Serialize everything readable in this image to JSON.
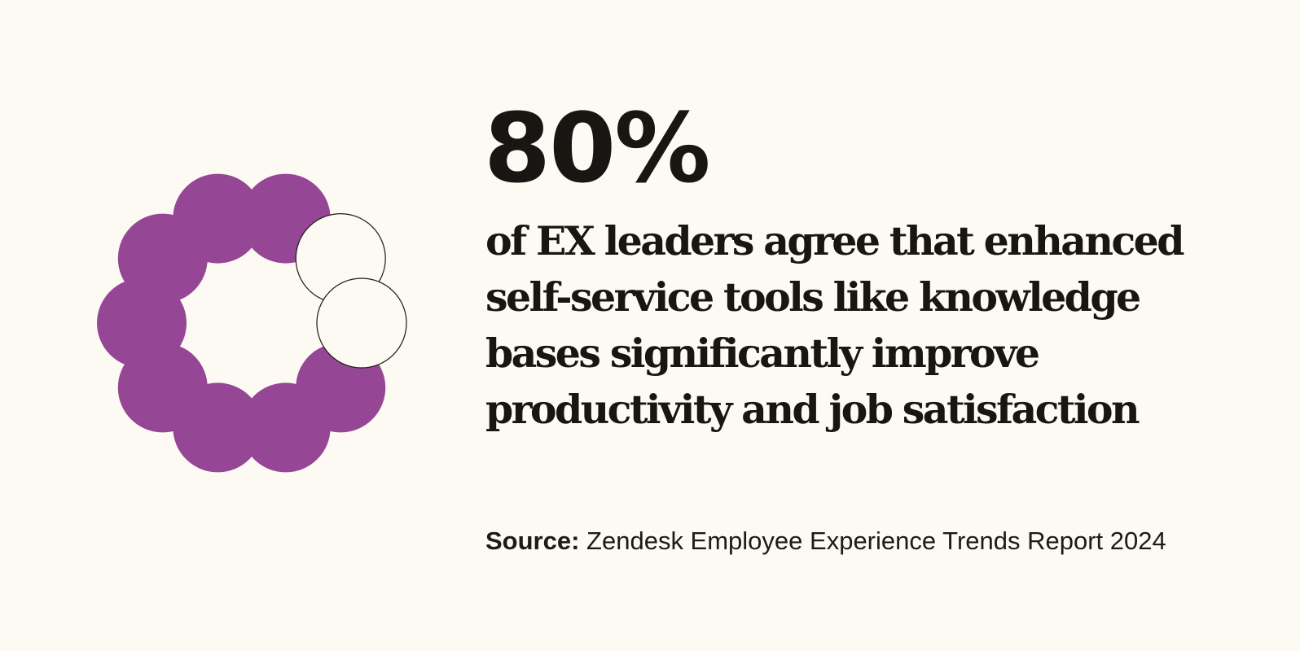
{
  "colors": {
    "background": "#fdf9f3",
    "filled": "#954694",
    "empty": "#fdf9f3",
    "outline": "#1c1b18",
    "text": "#171612"
  },
  "stat": {
    "value": "80%"
  },
  "statement": {
    "lines": [
      "of EX leaders agree that enhanced",
      "self-service tools like knowledge",
      "bases significantly improve",
      "productivity and job satisfaction"
    ]
  },
  "source": {
    "label": "Source:",
    "text": "Zendesk Employee Experience Trends Report 2024"
  },
  "chart_data": {
    "type": "pie",
    "title": "80%",
    "total_units": 10,
    "filled_units": 8,
    "series": [
      {
        "label": "agree",
        "value": 80,
        "color": "#954694"
      },
      {
        "label": "",
        "value": 20,
        "color": "#fdf9f3"
      }
    ]
  }
}
